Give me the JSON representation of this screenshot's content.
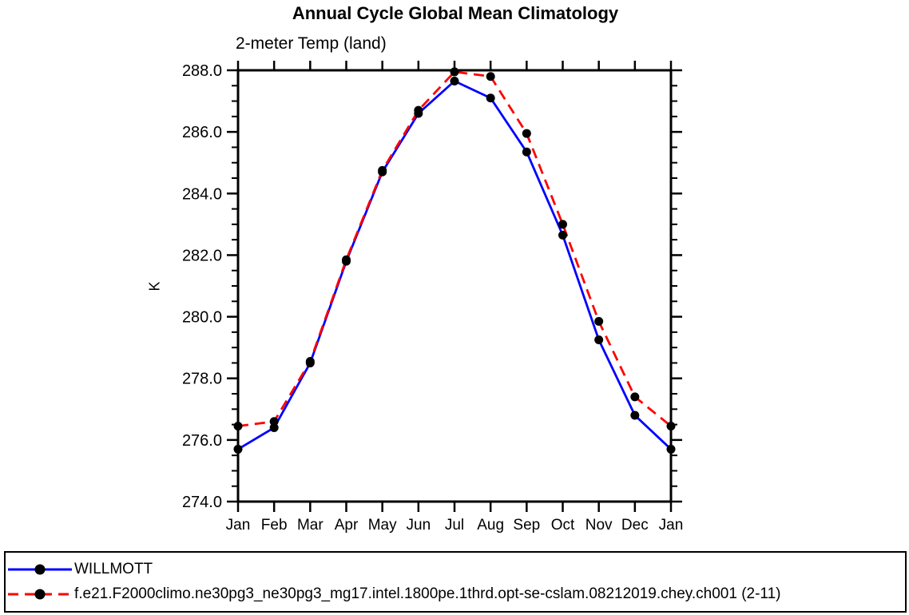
{
  "chart": {
    "title": "Annual Cycle Global Mean Climatology",
    "subtitle": "2-meter Temp (land)",
    "ylabel": "K"
  },
  "legend": {
    "entries": [
      {
        "label": "WILLMOTT",
        "color": "#0000ff",
        "dash": "solid",
        "marker_color": "#000000"
      },
      {
        "label": "f.e21.F2000climo.ne30pg3_ne30pg3_mg17.intel.1800pe.1thrd.opt-se-cslam.08212019.chey.ch001 (2-11)",
        "color": "#ff0000",
        "dash": "dashed",
        "marker_color": "#000000"
      }
    ]
  },
  "chart_data": {
    "type": "line",
    "title": "Annual Cycle Global Mean Climatology",
    "subtitle": "2-meter Temp (land)",
    "xlabel": "",
    "ylabel": "K",
    "x_categories": [
      "Jan",
      "Feb",
      "Mar",
      "Apr",
      "May",
      "Jun",
      "Jul",
      "Aug",
      "Sep",
      "Oct",
      "Nov",
      "Dec",
      "Jan"
    ],
    "ylim": [
      274.0,
      288.0
    ],
    "ytick_step": 2.0,
    "yminor_step": 0.5,
    "ytick_labels": [
      "274.0",
      "276.0",
      "278.0",
      "280.0",
      "282.0",
      "284.0",
      "286.0",
      "288.0"
    ],
    "grid": false,
    "legend_position": "bottom-outside-box",
    "series": [
      {
        "name": "WILLMOTT",
        "color": "#0000ff",
        "dash": "solid",
        "marker": "filled-circle-black",
        "values": [
          275.7,
          276.4,
          278.5,
          281.8,
          284.7,
          286.6,
          287.65,
          287.1,
          285.35,
          282.65,
          279.25,
          276.8,
          275.7
        ]
      },
      {
        "name": "f.e21.F2000climo.ne30pg3_ne30pg3_mg17.intel.1800pe.1thrd.opt-se-cslam.08212019.chey.ch001 (2-11)",
        "color": "#ff0000",
        "dash": "dashed",
        "marker": "filled-circle-black",
        "values": [
          276.45,
          276.6,
          278.55,
          281.85,
          284.75,
          286.7,
          287.95,
          287.8,
          285.95,
          283.0,
          279.85,
          277.4,
          276.45
        ]
      }
    ]
  }
}
